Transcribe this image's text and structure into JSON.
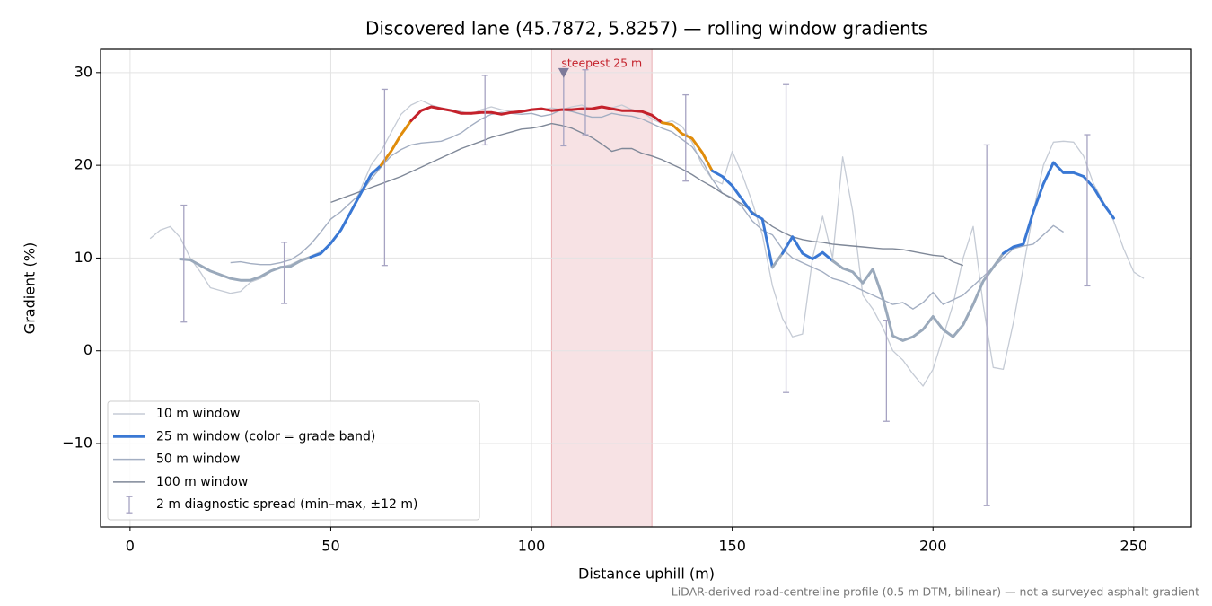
{
  "chart_data": {
    "type": "line",
    "title": "Discovered lane (45.7872, 5.8257) — rolling window gradients",
    "xlabel": "Distance uphill (m)",
    "ylabel": "Gradient (%)",
    "footnote": "LiDAR-derived road-centreline profile (0.5 m DTM, bilinear) — not a surveyed asphalt gradient",
    "xlim": [
      -7.35,
      264.35
    ],
    "ylim": [
      -19,
      32.5
    ],
    "xticks": [
      0,
      50,
      100,
      150,
      200,
      250
    ],
    "yticks": [
      {
        "value": -10,
        "label": "−10"
      },
      0,
      10,
      20,
      30
    ],
    "grid": true,
    "legend": "lower left",
    "x": [
      5,
      7.5,
      10,
      12.5,
      15,
      17.5,
      20,
      22.5,
      25,
      27.5,
      30,
      32.5,
      35,
      37.5,
      40,
      42.5,
      45,
      47.5,
      50,
      52.5,
      55,
      57.5,
      60,
      62.5,
      65,
      67.5,
      70,
      72.5,
      75,
      77.5,
      80,
      82.5,
      85,
      87.5,
      90,
      92.5,
      95,
      97.5,
      100,
      102.5,
      105,
      107.5,
      110,
      112.5,
      115,
      117.5,
      120,
      122.5,
      125,
      127.5,
      130,
      132.5,
      135,
      137.5,
      140,
      142.5,
      145,
      147.5,
      150,
      152.5,
      155,
      157.5,
      160,
      162.5,
      165,
      167.5,
      170,
      172.5,
      175,
      177.5,
      180,
      182.5,
      185,
      187.5,
      190,
      192.5,
      195,
      197.5,
      200,
      202.5,
      205,
      207.5,
      210,
      212.5,
      215,
      217.5,
      220,
      222.5,
      225,
      227.5,
      230,
      232.5,
      235,
      237.5,
      240,
      242.5,
      245,
      247.5,
      250,
      252.5
    ],
    "series": [
      {
        "name": "10 m window",
        "color": "#c5cbd5",
        "values": [
          12.1,
          13.0,
          13.4,
          12.2,
          10.0,
          8.5,
          6.8,
          6.5,
          6.2,
          6.4,
          7.4,
          7.8,
          8.5,
          9.0,
          9.3,
          9.8,
          10.2,
          10.7,
          11.5,
          13.0,
          15.0,
          17.5,
          20.0,
          21.5,
          23.5,
          25.5,
          26.5,
          27.0,
          26.5,
          26.2,
          26.0,
          25.8,
          25.5,
          26.0,
          26.3,
          26.0,
          25.8,
          25.7,
          25.9,
          26.0,
          26.2,
          26.0,
          26.3,
          26.5,
          26.0,
          26.3,
          26.2,
          26.5,
          26.0,
          25.8,
          25.0,
          24.5,
          24.8,
          24.2,
          22.5,
          20.0,
          18.5,
          18.0,
          21.5,
          19.0,
          16.0,
          12.5,
          7.0,
          3.5,
          1.5,
          1.8,
          10.0,
          14.5,
          10.0,
          20.9,
          15.0,
          6.0,
          4.5,
          2.5,
          0.0,
          -1.0,
          -2.5,
          -3.8,
          -2.0,
          1.5,
          5.0,
          10.0,
          13.4,
          5.0,
          -1.8,
          -2.0,
          3.0,
          9.0,
          15.0,
          20.0,
          22.5,
          22.6,
          22.5,
          21.0,
          18.0,
          16.0,
          14.0,
          11.0,
          8.5,
          7.8
        ]
      },
      {
        "name": "25 m window (color = grade band)",
        "color": "#3a78d4",
        "band_edges": [
          10,
          20,
          25
        ],
        "band_colors": [
          "#9aa9bb",
          "#3a78d4",
          "#e08c0b",
          "#c4212b"
        ],
        "values": [
          null,
          null,
          null,
          9.9,
          9.8,
          9.2,
          8.6,
          8.2,
          7.8,
          7.6,
          7.6,
          8.0,
          8.6,
          9.0,
          9.1,
          9.7,
          10.1,
          10.5,
          11.6,
          13.0,
          15.0,
          17.0,
          19.0,
          20.0,
          21.5,
          23.3,
          24.8,
          25.9,
          26.3,
          26.1,
          25.9,
          25.6,
          25.6,
          25.7,
          25.7,
          25.5,
          25.7,
          25.8,
          26.0,
          26.1,
          25.9,
          26.0,
          26.0,
          26.1,
          26.1,
          26.3,
          26.1,
          25.9,
          25.9,
          25.8,
          25.4,
          24.6,
          24.4,
          23.4,
          22.9,
          21.4,
          19.4,
          18.8,
          17.8,
          16.3,
          14.8,
          14.2,
          9.0,
          10.5,
          12.3,
          10.5,
          9.9,
          10.6,
          9.7,
          8.9,
          8.5,
          7.3,
          8.8,
          5.7,
          1.6,
          1.1,
          1.5,
          2.3,
          3.7,
          2.3,
          1.5,
          2.8,
          5.0,
          7.5,
          9.0,
          10.5,
          11.2,
          11.5,
          15.0,
          18.0,
          20.3,
          19.2,
          19.2,
          18.8,
          17.6,
          15.8,
          14.3,
          null,
          null,
          null
        ]
      },
      {
        "name": "50 m window",
        "color": "#a3aec2",
        "values": [
          null,
          null,
          null,
          null,
          null,
          null,
          null,
          null,
          9.5,
          9.6,
          9.4,
          9.3,
          9.3,
          9.5,
          9.8,
          10.5,
          11.5,
          12.8,
          14.2,
          15.0,
          16.0,
          17.0,
          18.5,
          19.8,
          21.0,
          21.7,
          22.2,
          22.4,
          22.5,
          22.6,
          23.0,
          23.5,
          24.3,
          25.0,
          25.5,
          25.7,
          25.6,
          25.5,
          25.6,
          25.3,
          25.5,
          26.0,
          25.8,
          25.5,
          25.2,
          25.2,
          25.6,
          25.4,
          25.3,
          25.0,
          24.5,
          24.0,
          23.6,
          22.8,
          22.0,
          20.5,
          18.5,
          17.0,
          16.5,
          15.5,
          14.0,
          13.0,
          12.5,
          11.0,
          10.0,
          9.5,
          9.0,
          8.5,
          7.8,
          7.5,
          7.0,
          6.5,
          6.0,
          5.5,
          5.0,
          5.2,
          4.5,
          5.2,
          6.3,
          5.0,
          5.5,
          6.0,
          7.0,
          8.0,
          9.0,
          10.0,
          11.0,
          11.3,
          11.5,
          12.5,
          13.5,
          12.8,
          null,
          null,
          null,
          null,
          null,
          null,
          null,
          null
        ]
      },
      {
        "name": "100 m window",
        "color": "#7f8898",
        "values": [
          null,
          null,
          null,
          null,
          null,
          null,
          null,
          null,
          null,
          null,
          null,
          null,
          null,
          null,
          null,
          null,
          null,
          null,
          16.0,
          16.4,
          16.8,
          17.2,
          17.6,
          18.0,
          18.4,
          18.8,
          19.3,
          19.8,
          20.3,
          20.8,
          21.3,
          21.8,
          22.2,
          22.6,
          23.0,
          23.3,
          23.6,
          23.9,
          24.0,
          24.2,
          24.5,
          24.3,
          24.0,
          23.5,
          23.0,
          22.3,
          21.5,
          21.8,
          21.8,
          21.3,
          21.0,
          20.6,
          20.1,
          19.6,
          19.0,
          18.3,
          17.7,
          17.0,
          16.4,
          15.8,
          15.0,
          14.2,
          13.4,
          12.8,
          12.3,
          12.0,
          11.8,
          11.7,
          11.5,
          11.4,
          11.3,
          11.2,
          11.1,
          11.0,
          11.0,
          10.9,
          10.7,
          10.5,
          10.3,
          10.2,
          9.6,
          9.2,
          null,
          null,
          null,
          null,
          null,
          null,
          null,
          null,
          null,
          null,
          null,
          null,
          null,
          null,
          null,
          null,
          null,
          null
        ]
      }
    ],
    "errorbars": {
      "name": "2 m diagnostic spread (min–max, ±12 m)",
      "color": "#a6a3c2",
      "x": [
        13.4,
        38.4,
        63.4,
        88.4,
        108,
        113.4,
        138.4,
        163.4,
        188.4,
        213.4,
        238.4
      ],
      "min": [
        3.1,
        5.1,
        9.2,
        22.2,
        22.1,
        23.3,
        18.3,
        -4.5,
        -7.6,
        -16.7,
        7.0
      ],
      "max": [
        15.7,
        11.7,
        28.2,
        29.7,
        30.2,
        30.3,
        27.6,
        28.7,
        3.3,
        22.2,
        23.3
      ]
    },
    "highlight": {
      "label": "steepest 25 m",
      "xmin": 105,
      "xmax": 130,
      "color": "#c4212b"
    },
    "marker": {
      "x": 108,
      "y": 30,
      "color": "#7d7a9a"
    }
  }
}
